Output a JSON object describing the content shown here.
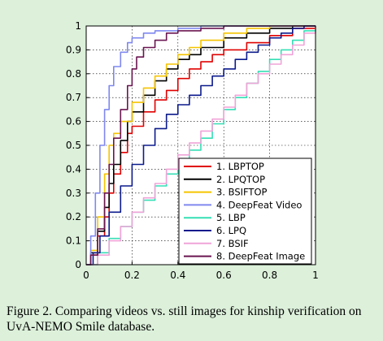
{
  "caption": "Figure 2. Comparing videos vs. still images for kinship verification on UvA-NEMO Smile database.",
  "chart_data": {
    "type": "line",
    "title": "",
    "xlabel": "",
    "ylabel": "",
    "xlim": [
      0,
      1
    ],
    "ylim": [
      0,
      1
    ],
    "grid": true,
    "legend_position": "lower-right",
    "x_ticks": [
      "0",
      "0.2",
      "0.4",
      "0.6",
      "0.8",
      "1"
    ],
    "y_ticks": [
      "0",
      "0.1",
      "0.2",
      "0.3",
      "0.4",
      "0.5",
      "0.6",
      "0.7",
      "0.8",
      "0.9",
      "1"
    ],
    "series": [
      {
        "name": "1. LBPTOP",
        "color": "#e00000",
        "points": [
          [
            0,
            0
          ],
          [
            0.02,
            0.04
          ],
          [
            0.05,
            0.12
          ],
          [
            0.08,
            0.2
          ],
          [
            0.1,
            0.3
          ],
          [
            0.12,
            0.38
          ],
          [
            0.15,
            0.47
          ],
          [
            0.18,
            0.55
          ],
          [
            0.2,
            0.58
          ],
          [
            0.25,
            0.64
          ],
          [
            0.3,
            0.69
          ],
          [
            0.35,
            0.73
          ],
          [
            0.4,
            0.78
          ],
          [
            0.45,
            0.82
          ],
          [
            0.5,
            0.85
          ],
          [
            0.55,
            0.88
          ],
          [
            0.6,
            0.9
          ],
          [
            0.7,
            0.93
          ],
          [
            0.8,
            0.96
          ],
          [
            0.9,
            0.99
          ],
          [
            1,
            1
          ]
        ]
      },
      {
        "name": "2. LPQTOP",
        "color": "#000000",
        "points": [
          [
            0,
            0
          ],
          [
            0.02,
            0.05
          ],
          [
            0.05,
            0.14
          ],
          [
            0.08,
            0.24
          ],
          [
            0.1,
            0.34
          ],
          [
            0.12,
            0.42
          ],
          [
            0.15,
            0.52
          ],
          [
            0.18,
            0.6
          ],
          [
            0.2,
            0.64
          ],
          [
            0.25,
            0.71
          ],
          [
            0.3,
            0.77
          ],
          [
            0.35,
            0.82
          ],
          [
            0.4,
            0.86
          ],
          [
            0.45,
            0.88
          ],
          [
            0.5,
            0.91
          ],
          [
            0.6,
            0.95
          ],
          [
            0.7,
            0.97
          ],
          [
            0.8,
            0.99
          ],
          [
            0.9,
            1
          ],
          [
            1,
            1
          ]
        ]
      },
      {
        "name": "3. BSIFTOP",
        "color": "#f5c400",
        "points": [
          [
            0,
            0
          ],
          [
            0.02,
            0.06
          ],
          [
            0.05,
            0.2
          ],
          [
            0.08,
            0.38
          ],
          [
            0.1,
            0.5
          ],
          [
            0.12,
            0.55
          ],
          [
            0.15,
            0.6
          ],
          [
            0.2,
            0.68
          ],
          [
            0.25,
            0.74
          ],
          [
            0.3,
            0.79
          ],
          [
            0.35,
            0.84
          ],
          [
            0.4,
            0.88
          ],
          [
            0.45,
            0.91
          ],
          [
            0.5,
            0.94
          ],
          [
            0.6,
            0.97
          ],
          [
            0.7,
            0.99
          ],
          [
            0.8,
            1
          ],
          [
            1,
            1
          ]
        ]
      },
      {
        "name": "4. DeepFeat Video",
        "color": "#7f88ee",
        "points": [
          [
            0,
            0
          ],
          [
            0.02,
            0.12
          ],
          [
            0.04,
            0.3
          ],
          [
            0.06,
            0.5
          ],
          [
            0.08,
            0.65
          ],
          [
            0.1,
            0.75
          ],
          [
            0.12,
            0.83
          ],
          [
            0.15,
            0.89
          ],
          [
            0.18,
            0.93
          ],
          [
            0.2,
            0.95
          ],
          [
            0.25,
            0.97
          ],
          [
            0.3,
            0.98
          ],
          [
            0.4,
            0.99
          ],
          [
            0.5,
            1
          ],
          [
            1,
            1
          ]
        ]
      },
      {
        "name": "5. LBP",
        "color": "#35dfb5",
        "points": [
          [
            0,
            0
          ],
          [
            0.05,
            0.05
          ],
          [
            0.1,
            0.11
          ],
          [
            0.15,
            0.16
          ],
          [
            0.2,
            0.22
          ],
          [
            0.25,
            0.27
          ],
          [
            0.3,
            0.33
          ],
          [
            0.35,
            0.38
          ],
          [
            0.4,
            0.43
          ],
          [
            0.45,
            0.48
          ],
          [
            0.5,
            0.53
          ],
          [
            0.55,
            0.59
          ],
          [
            0.6,
            0.65
          ],
          [
            0.65,
            0.7
          ],
          [
            0.7,
            0.76
          ],
          [
            0.75,
            0.81
          ],
          [
            0.8,
            0.86
          ],
          [
            0.85,
            0.9
          ],
          [
            0.9,
            0.94
          ],
          [
            0.95,
            0.98
          ],
          [
            1,
            1
          ]
        ]
      },
      {
        "name": "6. LPQ",
        "color": "#0b1a8c",
        "points": [
          [
            0,
            0
          ],
          [
            0.03,
            0.05
          ],
          [
            0.06,
            0.12
          ],
          [
            0.1,
            0.22
          ],
          [
            0.15,
            0.33
          ],
          [
            0.2,
            0.42
          ],
          [
            0.25,
            0.5
          ],
          [
            0.3,
            0.57
          ],
          [
            0.35,
            0.63
          ],
          [
            0.4,
            0.67
          ],
          [
            0.45,
            0.71
          ],
          [
            0.5,
            0.75
          ],
          [
            0.55,
            0.79
          ],
          [
            0.6,
            0.82
          ],
          [
            0.65,
            0.86
          ],
          [
            0.7,
            0.89
          ],
          [
            0.75,
            0.92
          ],
          [
            0.8,
            0.95
          ],
          [
            0.85,
            0.97
          ],
          [
            0.9,
            0.99
          ],
          [
            0.95,
            1
          ],
          [
            1,
            1
          ]
        ]
      },
      {
        "name": "7. BSIF",
        "color": "#f0a3d8",
        "points": [
          [
            0,
            0
          ],
          [
            0.05,
            0.04
          ],
          [
            0.1,
            0.1
          ],
          [
            0.15,
            0.16
          ],
          [
            0.2,
            0.22
          ],
          [
            0.25,
            0.28
          ],
          [
            0.3,
            0.34
          ],
          [
            0.35,
            0.4
          ],
          [
            0.4,
            0.46
          ],
          [
            0.45,
            0.51
          ],
          [
            0.5,
            0.56
          ],
          [
            0.55,
            0.61
          ],
          [
            0.6,
            0.66
          ],
          [
            0.65,
            0.71
          ],
          [
            0.7,
            0.76
          ],
          [
            0.75,
            0.8
          ],
          [
            0.8,
            0.84
          ],
          [
            0.85,
            0.88
          ],
          [
            0.9,
            0.92
          ],
          [
            0.95,
            0.97
          ],
          [
            1,
            1
          ]
        ]
      },
      {
        "name": "8. DeepFeat Image",
        "color": "#6a1550",
        "points": [
          [
            0,
            0
          ],
          [
            0.02,
            0.04
          ],
          [
            0.05,
            0.15
          ],
          [
            0.08,
            0.3
          ],
          [
            0.1,
            0.42
          ],
          [
            0.12,
            0.53
          ],
          [
            0.15,
            0.65
          ],
          [
            0.18,
            0.75
          ],
          [
            0.2,
            0.82
          ],
          [
            0.22,
            0.87
          ],
          [
            0.25,
            0.91
          ],
          [
            0.3,
            0.94
          ],
          [
            0.35,
            0.97
          ],
          [
            0.4,
            0.98
          ],
          [
            0.5,
            0.99
          ],
          [
            0.6,
            1
          ],
          [
            1,
            1
          ]
        ]
      }
    ]
  }
}
